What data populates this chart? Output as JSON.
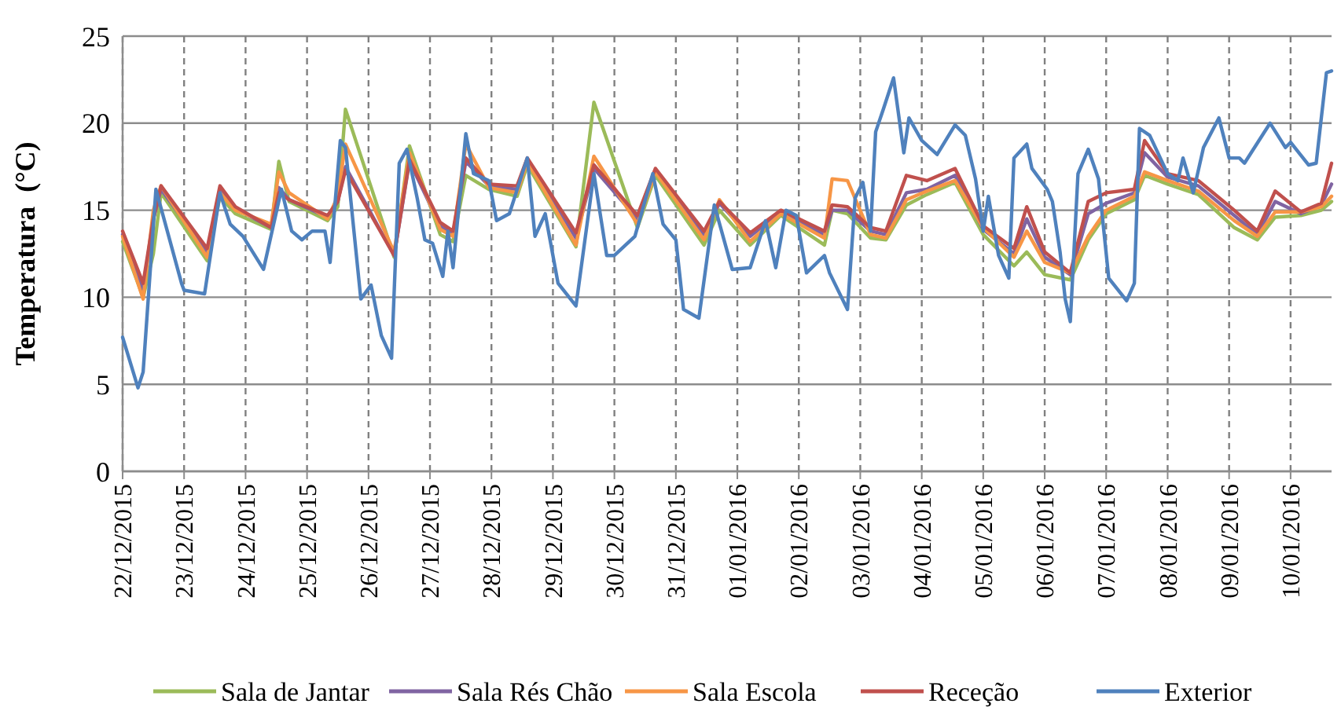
{
  "chart_data": {
    "type": "line",
    "ylabel": "Temperatura  (°C)",
    "xlim": [
      "2015-12-22T00:00",
      "2016-01-10T16:00"
    ],
    "ylim": [
      0,
      25
    ],
    "yticks": [
      0,
      5,
      10,
      15,
      20,
      25
    ],
    "xticks": [
      {
        "value": "2015-12-22",
        "label": "22/12/2015"
      },
      {
        "value": "2015-12-23",
        "label": "23/12/2015"
      },
      {
        "value": "2015-12-24",
        "label": "24/12/2015"
      },
      {
        "value": "2015-12-25",
        "label": "25/12/2015"
      },
      {
        "value": "2015-12-26",
        "label": "26/12/2015"
      },
      {
        "value": "2015-12-27",
        "label": "27/12/2015"
      },
      {
        "value": "2015-12-28",
        "label": "28/12/2015"
      },
      {
        "value": "2015-12-29",
        "label": "29/12/2015"
      },
      {
        "value": "2015-12-30",
        "label": "30/12/2015"
      },
      {
        "value": "2015-12-31",
        "label": "31/12/2015"
      },
      {
        "value": "2016-01-01",
        "label": "01/01/2016"
      },
      {
        "value": "2016-01-02",
        "label": "02/01/2016"
      },
      {
        "value": "2016-01-03",
        "label": "03/01/2016"
      },
      {
        "value": "2016-01-04",
        "label": "04/01/2016"
      },
      {
        "value": "2016-01-05",
        "label": "05/01/2016"
      },
      {
        "value": "2016-01-06",
        "label": "06/01/2016"
      },
      {
        "value": "2016-01-07",
        "label": "07/01/2016"
      },
      {
        "value": "2016-01-08",
        "label": "08/01/2016"
      },
      {
        "value": "2016-01-09",
        "label": "09/01/2016"
      },
      {
        "value": "2016-01-10",
        "label": "10/01/2016"
      }
    ],
    "x": [
      "2015-12-22T00:00",
      "2015-12-22T08:00",
      "2015-12-22T12:00",
      "2015-12-22T15:00",
      "2015-12-23T09:00",
      "2015-12-23T14:00",
      "2015-12-23T20:00",
      "2015-12-24T10:00",
      "2015-12-24T13:00",
      "2015-12-24T17:00",
      "2015-12-25T08:00",
      "2015-12-25T12:00",
      "2015-12-25T15:00",
      "2015-12-26T10:00",
      "2015-12-26T16:00",
      "2015-12-27T04:00",
      "2015-12-27T09:00",
      "2015-12-27T14:00",
      "2015-12-27T23:00",
      "2015-12-28T10:00",
      "2015-12-28T14:00",
      "2015-12-29T09:00",
      "2015-12-29T16:00",
      "2015-12-30T09:00",
      "2015-12-30T16:00",
      "2015-12-31T11:00",
      "2015-12-31T17:00",
      "2016-01-01T05:00",
      "2016-01-01T17:00",
      "2016-01-02T10:00",
      "2016-01-02T13:00",
      "2016-01-02T19:00",
      "2016-01-03T04:00",
      "2016-01-03T10:00",
      "2016-01-03T18:00",
      "2016-01-04T02:00",
      "2016-01-04T13:00",
      "2016-01-05T00:00",
      "2016-01-05T12:00",
      "2016-01-05T17:00",
      "2016-01-06T00:00",
      "2016-01-06T10:00",
      "2016-01-06T17:00",
      "2016-01-07T00:00",
      "2016-01-07T11:00",
      "2016-01-07T15:00",
      "2016-01-08T00:00",
      "2016-01-08T12:00",
      "2016-01-09T02:00",
      "2016-01-09T11:00",
      "2016-01-09T18:00",
      "2016-01-10T04:00",
      "2016-01-10T12:00",
      "2016-01-10T16:00"
    ],
    "series": [
      {
        "name": "Sala de Jantar",
        "color": "#9bbb59",
        "values": [
          13.2,
          10.0,
          12.5,
          16.0,
          12.1,
          15.8,
          14.8,
          13.9,
          17.8,
          15.5,
          14.4,
          15.2,
          20.8,
          12.3,
          18.7,
          13.6,
          13.2,
          17.0,
          16.2,
          15.8,
          17.6,
          12.9,
          21.2,
          14.0,
          17.0,
          13.0,
          15.0,
          13.0,
          14.7,
          13.0,
          15.0,
          14.8,
          13.4,
          13.3,
          15.3,
          15.9,
          16.6,
          13.6,
          11.8,
          12.6,
          11.3,
          11.0,
          13.3,
          14.8,
          15.6,
          17.0,
          16.5,
          15.9,
          14.0,
          13.3,
          14.6,
          14.7,
          15.0,
          15.5
        ]
      },
      {
        "name": "Sala Rés Chão",
        "color": "#8064a2",
        "values": [
          13.6,
          10.4,
          14.5,
          16.2,
          12.6,
          16.2,
          15.1,
          14.0,
          16.3,
          15.6,
          14.6,
          15.5,
          17.5,
          12.4,
          17.8,
          14.1,
          13.6,
          17.8,
          16.4,
          16.2,
          17.9,
          13.4,
          17.4,
          14.5,
          17.3,
          13.6,
          15.4,
          13.5,
          14.9,
          13.6,
          15.0,
          15.0,
          13.8,
          13.6,
          16.0,
          16.2,
          17.0,
          13.9,
          12.5,
          14.5,
          12.3,
          11.3,
          14.8,
          15.4,
          16.0,
          18.3,
          16.9,
          16.4,
          14.7,
          13.6,
          15.5,
          14.8,
          15.3,
          16.5
        ]
      },
      {
        "name": "Sala Escola",
        "color": "#f79646",
        "values": [
          13.5,
          9.9,
          15.0,
          16.4,
          12.3,
          16.0,
          15.0,
          14.2,
          17.2,
          16.0,
          14.5,
          15.8,
          18.8,
          12.6,
          18.3,
          13.9,
          13.5,
          18.8,
          16.3,
          16.0,
          17.8,
          13.0,
          18.1,
          14.2,
          17.2,
          13.3,
          15.6,
          13.2,
          14.8,
          13.4,
          16.8,
          16.7,
          13.6,
          13.4,
          15.6,
          16.1,
          16.7,
          14.0,
          12.3,
          13.8,
          12.0,
          11.4,
          13.5,
          15.0,
          15.8,
          17.2,
          16.7,
          16.1,
          14.4,
          13.5,
          14.9,
          14.9,
          15.2,
          15.8
        ]
      },
      {
        "name": "Receção",
        "color": "#c0504d",
        "values": [
          13.8,
          10.8,
          14.5,
          16.4,
          12.8,
          16.4,
          15.2,
          14.0,
          16.0,
          15.6,
          14.7,
          15.5,
          17.3,
          12.4,
          17.9,
          14.3,
          13.8,
          18.0,
          16.5,
          16.4,
          18.0,
          13.7,
          17.6,
          14.7,
          17.4,
          13.8,
          15.5,
          13.7,
          15.0,
          13.8,
          15.3,
          15.2,
          14.0,
          13.8,
          17.0,
          16.7,
          17.4,
          14.1,
          12.8,
          15.2,
          12.6,
          11.4,
          15.5,
          16.0,
          16.2,
          19.0,
          17.1,
          16.7,
          15.0,
          13.8,
          16.1,
          14.9,
          15.4,
          17.7
        ]
      },
      {
        "name": "Exterior",
        "color": "#4f81bd",
        "x": [
          "2015-12-22T00:00",
          "2015-12-22T06:00",
          "2015-12-22T08:00",
          "2015-12-22T13:00",
          "2015-12-22T23:00",
          "2015-12-23T00:00",
          "2015-12-23T08:00",
          "2015-12-23T14:00",
          "2015-12-23T18:00",
          "2015-12-23T23:00",
          "2015-12-24T07:00",
          "2015-12-24T14:00",
          "2015-12-24T18:00",
          "2015-12-24T22:00",
          "2015-12-25T02:00",
          "2015-12-25T07:00",
          "2015-12-25T09:00",
          "2015-12-25T13:00",
          "2015-12-25T15:00",
          "2015-12-25T21:00",
          "2015-12-26T01:00",
          "2015-12-26T05:00",
          "2015-12-26T09:00",
          "2015-12-26T12:00",
          "2015-12-26T15:00",
          "2015-12-26T19:00",
          "2015-12-26T22:00",
          "2015-12-27T01:00",
          "2015-12-27T05:00",
          "2015-12-27T07:00",
          "2015-12-27T09:00",
          "2015-12-27T14:00",
          "2015-12-27T17:00",
          "2015-12-27T23:00",
          "2015-12-28T02:00",
          "2015-12-28T07:00",
          "2015-12-28T14:00",
          "2015-12-28T17:00",
          "2015-12-28T21:00",
          "2015-12-29T02:00",
          "2015-12-29T09:00",
          "2015-12-29T16:00",
          "2015-12-29T21:00",
          "2015-12-30T00:00",
          "2015-12-30T08:00",
          "2015-12-30T15:00",
          "2015-12-30T19:00",
          "2015-12-31T00:00",
          "2015-12-31T03:00",
          "2015-12-31T09:00",
          "2015-12-31T15:00",
          "2015-12-31T22:00",
          "2016-01-01T05:00",
          "2016-01-01T11:00",
          "2016-01-01T15:00",
          "2016-01-01T19:00",
          "2016-01-01T23:00",
          "2016-01-02T03:00",
          "2016-01-02T10:00",
          "2016-01-02T12:00",
          "2016-01-02T19:00",
          "2016-01-02T22:00",
          "2016-01-03T01:00",
          "2016-01-03T04:00",
          "2016-01-03T06:00",
          "2016-01-03T09:00",
          "2016-01-03T13:00",
          "2016-01-03T17:00",
          "2016-01-03T19:00",
          "2016-01-04T00:00",
          "2016-01-04T06:00",
          "2016-01-04T13:00",
          "2016-01-04T17:00",
          "2016-01-04T21:00",
          "2016-01-05T00:00",
          "2016-01-05T02:00",
          "2016-01-05T06:00",
          "2016-01-05T10:00",
          "2016-01-05T12:00",
          "2016-01-05T17:00",
          "2016-01-05T19:00",
          "2016-01-06T01:00",
          "2016-01-06T03:00",
          "2016-01-06T06:00",
          "2016-01-06T08:00",
          "2016-01-06T10:00",
          "2016-01-06T13:00",
          "2016-01-06T17:00",
          "2016-01-06T21:00",
          "2016-01-07T01:00",
          "2016-01-07T08:00",
          "2016-01-07T11:00",
          "2016-01-07T13:00",
          "2016-01-07T17:00",
          "2016-01-08T00:00",
          "2016-01-08T04:00",
          "2016-01-08T06:00",
          "2016-01-08T10:00",
          "2016-01-08T14:00",
          "2016-01-08T20:00",
          "2016-01-09T00:00",
          "2016-01-09T04:00",
          "2016-01-09T06:00",
          "2016-01-09T16:00",
          "2016-01-09T22:00",
          "2016-01-10T00:00",
          "2016-01-10T07:00",
          "2016-01-10T10:00",
          "2016-01-10T14:00",
          "2016-01-10T16:00"
        ],
        "values": [
          7.7,
          4.8,
          5.7,
          16.2,
          10.8,
          10.4,
          10.2,
          16.0,
          14.2,
          13.5,
          11.6,
          16.2,
          13.8,
          13.3,
          13.8,
          13.8,
          12.0,
          19.0,
          18.6,
          9.9,
          10.7,
          7.8,
          6.5,
          17.7,
          18.5,
          15.7,
          13.3,
          13.1,
          11.2,
          13.8,
          11.7,
          19.4,
          17.1,
          16.7,
          14.4,
          14.8,
          18.0,
          13.5,
          14.8,
          10.8,
          9.5,
          17.1,
          12.4,
          12.4,
          13.5,
          17.1,
          14.2,
          13.3,
          9.3,
          8.8,
          15.3,
          11.6,
          11.7,
          14.4,
          11.7,
          15.0,
          14.7,
          11.4,
          12.4,
          11.4,
          9.3,
          15.7,
          16.6,
          13.8,
          19.5,
          20.8,
          22.6,
          18.3,
          20.3,
          19.0,
          18.2,
          19.9,
          19.3,
          16.8,
          13.8,
          15.8,
          12.4,
          11.1,
          18.0,
          18.8,
          17.4,
          16.2,
          15.5,
          12.6,
          9.9,
          8.6,
          17.1,
          18.5,
          16.8,
          11.1,
          9.8,
          10.8,
          19.7,
          19.3,
          17.1,
          16.7,
          18.0,
          16.0,
          18.6,
          20.3,
          18.0,
          18.0,
          17.7,
          20.0,
          18.6,
          18.9,
          17.6,
          17.7,
          22.9,
          23.0
        ]
      }
    ],
    "grid": true,
    "legend": "bottom",
    "line_style": "solid",
    "marker": "none"
  }
}
